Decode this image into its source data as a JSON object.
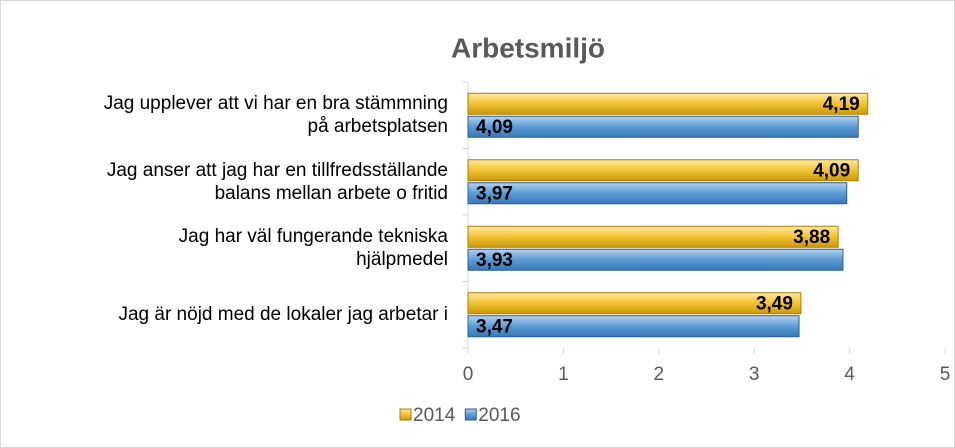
{
  "chart_data": {
    "type": "barh",
    "title": "Arbetsmiljö",
    "categories": [
      "Jag upplever att vi har en bra stämmning\npå arbetsplatsen",
      "Jag anser att jag har en tillfredsställande\nbalans mellan arbete o fritid",
      "Jag har väl fungerande tekniska\nhjälpmedel",
      "Jag är nöjd med de lokaler jag arbetar i"
    ],
    "series": [
      {
        "name": "2014",
        "color": "#f2c230",
        "values": [
          4.19,
          4.09,
          3.88,
          3.49
        ],
        "value_labels": [
          "4,19",
          "4,09",
          "3,88",
          "3,49"
        ]
      },
      {
        "name": "2016",
        "color": "#5b9bd5",
        "values": [
          4.09,
          3.97,
          3.93,
          3.47
        ],
        "value_labels": [
          "4,09",
          "3,97",
          "3,93",
          "3,47"
        ]
      }
    ],
    "xlim": [
      0,
      5
    ],
    "xticks": [
      0,
      1,
      2,
      3,
      4,
      5
    ],
    "grid": false,
    "legend": "bottom"
  }
}
